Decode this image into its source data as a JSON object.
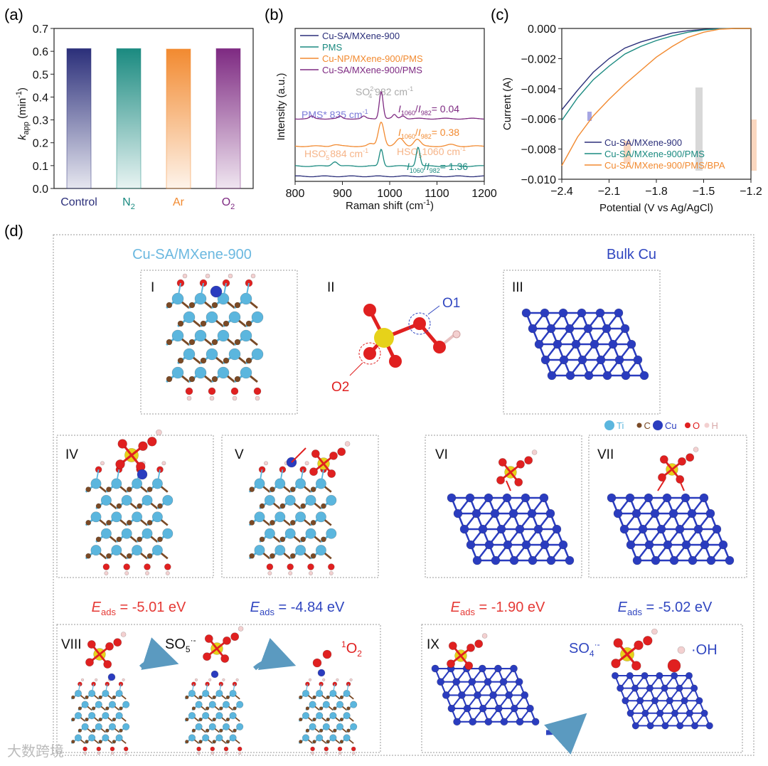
{
  "panels": {
    "a": "(a)",
    "b": "(b)",
    "c": "(c)",
    "d": "(d)"
  },
  "colors": {
    "navy": "#2b2f7a",
    "teal": "#1a8a80",
    "orange": "#f28a30",
    "purple": "#7e2a82",
    "red": "#e53935",
    "blue": "#3046c0",
    "ti": "#5bb6de",
    "c": "#7a4a26",
    "cu": "#2a3cbf",
    "o": "#e02020",
    "h": "#f3d0d0",
    "s": "#e6d21a"
  },
  "chart_data": [
    {
      "type": "bar",
      "title": "",
      "xlabel": "",
      "ylabel": {
        "k": "k",
        "sub": "app",
        "unit": " (min",
        "sup": "-1",
        "close": ")"
      },
      "categories": [
        {
          "main": "Control",
          "sub": ""
        },
        {
          "main": "N",
          "sub": "2"
        },
        {
          "main": "Ar",
          "sub": ""
        },
        {
          "main": "O",
          "sub": "2"
        }
      ],
      "values": [
        0.612,
        0.612,
        0.61,
        0.612
      ],
      "ylim": [
        0,
        0.7
      ],
      "yticks": [
        "0.0",
        "0.1",
        "0.2",
        "0.3",
        "0.4",
        "0.5",
        "0.6",
        "0.7"
      ]
    },
    {
      "type": "line",
      "xlabel": {
        "main": "Raman shift (cm",
        "sup": "-1",
        "close": ")"
      },
      "ylabel": "Intensity (a.u.)",
      "xlim": [
        800,
        1200
      ],
      "ylim": [
        0,
        10
      ],
      "xticks": [
        "800",
        "900",
        "1000",
        "1100",
        "1200"
      ],
      "series": [
        {
          "name": "Cu-SA/MXene-900",
          "baseline": 0.33,
          "peaks": []
        },
        {
          "name": "PMS",
          "baseline": 1.0,
          "peaks": [
            [
              884,
              0.3,
              6
            ],
            [
              982,
              1.1,
              4
            ],
            [
              1060,
              1.25,
              4
            ]
          ]
        },
        {
          "name": "Cu-NP/MXene-900/PMS",
          "baseline": 2.3,
          "peaks": [
            [
              885,
              0.1,
              8
            ],
            [
              960,
              0.15,
              6
            ],
            [
              982,
              1.6,
              6
            ],
            [
              1022,
              0.5,
              8
            ],
            [
              1058,
              0.45,
              7
            ],
            [
              1130,
              0.1,
              8
            ]
          ]
        },
        {
          "name": "Cu-SA/MXene-900/PMS",
          "baseline": 4.1,
          "peaks": [
            [
              835,
              0.15,
              4
            ],
            [
              895,
              0.15,
              4
            ],
            [
              945,
              0.15,
              4
            ],
            [
              982,
              1.8,
              4
            ],
            [
              1010,
              0.25,
              4
            ],
            [
              1028,
              0.2,
              5
            ]
          ]
        }
      ],
      "annotations": {
        "pms": "PMS* 835 cm",
        "pms_sup": "-1",
        "so4": "SO",
        "so4_sub": "4",
        "so4_sup": "2-",
        "so4_val": " 982 cm",
        "so4_vsup": "-1",
        "hso5a": "HSO",
        "hso5a_sub": "5",
        "hso5a_sup": "-",
        "hso5a_val": " 884 cm",
        "hso5a_vsup": "-1",
        "hso5b": "HSO",
        "hso5b_sub": "5",
        "hso5b_val": "1060 cm",
        "hso5b_vsup": "-1",
        "ratios": [
          {
            "I": "I",
            "s1": "1060",
            "sl": "/",
            "I2": "I",
            "s2": "982",
            "v": "= 0.04"
          },
          {
            "I": "I",
            "s1": "1060",
            "sl": "/",
            "I2": "I",
            "s2": "982",
            "v": "= 0.38"
          },
          {
            "I": "I",
            "s1": "1060",
            "sl": "/",
            "I2": "I",
            "s2": "982",
            "v": "= 1.36"
          }
        ]
      }
    },
    {
      "type": "line",
      "xlabel": "Potential (V vs Ag/AgCl)",
      "ylabel": "Current (A)",
      "xlim": [
        -2.4,
        -1.2
      ],
      "ylim": [
        -0.01,
        0
      ],
      "xticks": [
        "-2.4",
        "-2.1",
        "-1.8",
        "-1.5",
        "-1.2"
      ],
      "yticks": [
        "0.000",
        "-0.002",
        "-0.004",
        "-0.006",
        "-0.008",
        "-0.010"
      ],
      "series": [
        {
          "name": "Cu-SA/MXene-900",
          "x": [
            -2.4,
            -2.3,
            -2.2,
            -2.1,
            -2.0,
            -1.9,
            -1.8,
            -1.7,
            -1.6,
            -1.5,
            -1.4,
            -1.3,
            -1.2
          ],
          "y": [
            -0.0054,
            -0.0041,
            -0.0029,
            -0.002,
            -0.0013,
            -0.0009,
            -0.0006,
            -0.0003,
            -0.00015,
            -6e-05,
            -2e-05,
            0,
            0
          ]
        },
        {
          "name": "Cu-SA/MXene-900/PMS",
          "x": [
            -2.4,
            -2.3,
            -2.2,
            -2.1,
            -2.0,
            -1.9,
            -1.8,
            -1.7,
            -1.6,
            -1.5,
            -1.4,
            -1.3,
            -1.2
          ],
          "y": [
            -0.0061,
            -0.0046,
            -0.0034,
            -0.0025,
            -0.0017,
            -0.0012,
            -0.0008,
            -0.0005,
            -0.00025,
            -0.0001,
            -3e-05,
            0,
            0
          ]
        },
        {
          "name": "Cu-SA/MXene-900/PMS/BPA",
          "x": [
            -2.4,
            -2.3,
            -2.2,
            -2.1,
            -2.0,
            -1.9,
            -1.8,
            -1.7,
            -1.6,
            -1.5,
            -1.4,
            -1.3,
            -1.2
          ],
          "y": [
            -0.0091,
            -0.0072,
            -0.0058,
            -0.0047,
            -0.0037,
            -0.0028,
            -0.0019,
            -0.0012,
            -0.0006,
            -0.00025,
            -5e-05,
            0,
            0
          ]
        }
      ]
    }
  ],
  "diagram": {
    "title_left": "Cu-SA/MXene-900",
    "title_right": "Bulk Cu",
    "labels": [
      "I",
      "II",
      "III",
      "IV",
      "V",
      "VI",
      "VII",
      "VIII",
      "IX"
    ],
    "o1": "O1",
    "o2": "O2",
    "legend": [
      "Ti",
      "C",
      "Cu",
      "O",
      "H"
    ],
    "eads": [
      {
        "E": "E",
        "sub": "ads",
        "v": " = -5.01 eV"
      },
      {
        "E": "E",
        "sub": "ads",
        "v": " = -4.84 eV"
      },
      {
        "E": "E",
        "sub": "ads",
        "v": " = -1.90 eV"
      },
      {
        "E": "E",
        "sub": "ads",
        "v": " = -5.02 eV"
      }
    ],
    "so5": "SO",
    "so5_sub": "5",
    "so5_sup": "·-",
    "o2_sup": "1",
    "o2_main": "O",
    "o2_sub": "2",
    "so4": "SO",
    "so4_sub": "4",
    "so4_sup": "·-",
    "oh": "·OH"
  },
  "watermark": "大数跨境"
}
